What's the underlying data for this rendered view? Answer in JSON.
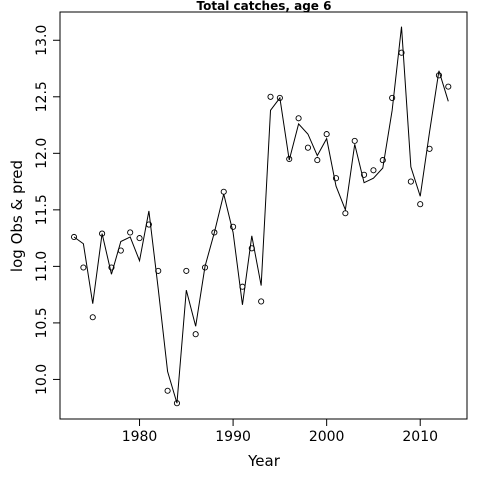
{
  "chart_data": {
    "type": "line",
    "title": "Total catches, age 6",
    "xlabel": "Year",
    "ylabel": "log Obs & pred",
    "xlim": [
      1971.5,
      2015.0
    ],
    "ylim": [
      9.65,
      13.25
    ],
    "xticks": [
      1980,
      1990,
      2000,
      2010
    ],
    "yticks": [
      10.0,
      10.5,
      11.0,
      11.5,
      12.0,
      12.5,
      13.0
    ],
    "xtick_labels": [
      "1980",
      "1990",
      "2000",
      "2010"
    ],
    "ytick_labels": [
      "10.0",
      "10.5",
      "11.0",
      "11.5",
      "12.0",
      "12.5",
      "13.0"
    ],
    "grid": false,
    "x": [
      1973,
      1974,
      1975,
      1976,
      1977,
      1978,
      1979,
      1980,
      1981,
      1982,
      1983,
      1984,
      1985,
      1986,
      1987,
      1988,
      1989,
      1990,
      1991,
      1992,
      1993,
      1994,
      1995,
      1996,
      1997,
      1998,
      1999,
      2000,
      2001,
      2002,
      2003,
      2004,
      2005,
      2006,
      2007,
      2008,
      2009,
      2010,
      2011,
      2012,
      2013
    ],
    "series": [
      {
        "style": "points",
        "values": [
          11.26,
          10.99,
          10.55,
          11.29,
          10.99,
          11.14,
          11.3,
          11.25,
          11.37,
          10.96,
          9.9,
          9.79,
          10.96,
          10.4,
          10.99,
          11.3,
          11.66,
          11.35,
          10.82,
          11.16,
          10.69,
          12.5,
          12.49,
          11.95,
          12.31,
          12.05,
          11.94,
          12.17,
          11.78,
          11.47,
          12.11,
          11.81,
          11.85,
          11.94,
          12.49,
          12.89,
          11.75,
          11.55,
          12.04,
          12.69,
          12.59
        ]
      },
      {
        "style": "line",
        "values": [
          11.26,
          11.2,
          10.67,
          11.29,
          10.93,
          11.22,
          11.26,
          11.05,
          11.49,
          10.8,
          10.07,
          9.79,
          10.79,
          10.47,
          11.0,
          11.3,
          11.64,
          11.3,
          10.66,
          11.27,
          10.83,
          12.38,
          12.49,
          11.94,
          12.26,
          12.17,
          11.98,
          12.13,
          11.71,
          11.5,
          12.08,
          11.74,
          11.78,
          11.87,
          12.38,
          13.12,
          11.88,
          11.62,
          12.19,
          12.73,
          12.46
        ]
      }
    ]
  }
}
